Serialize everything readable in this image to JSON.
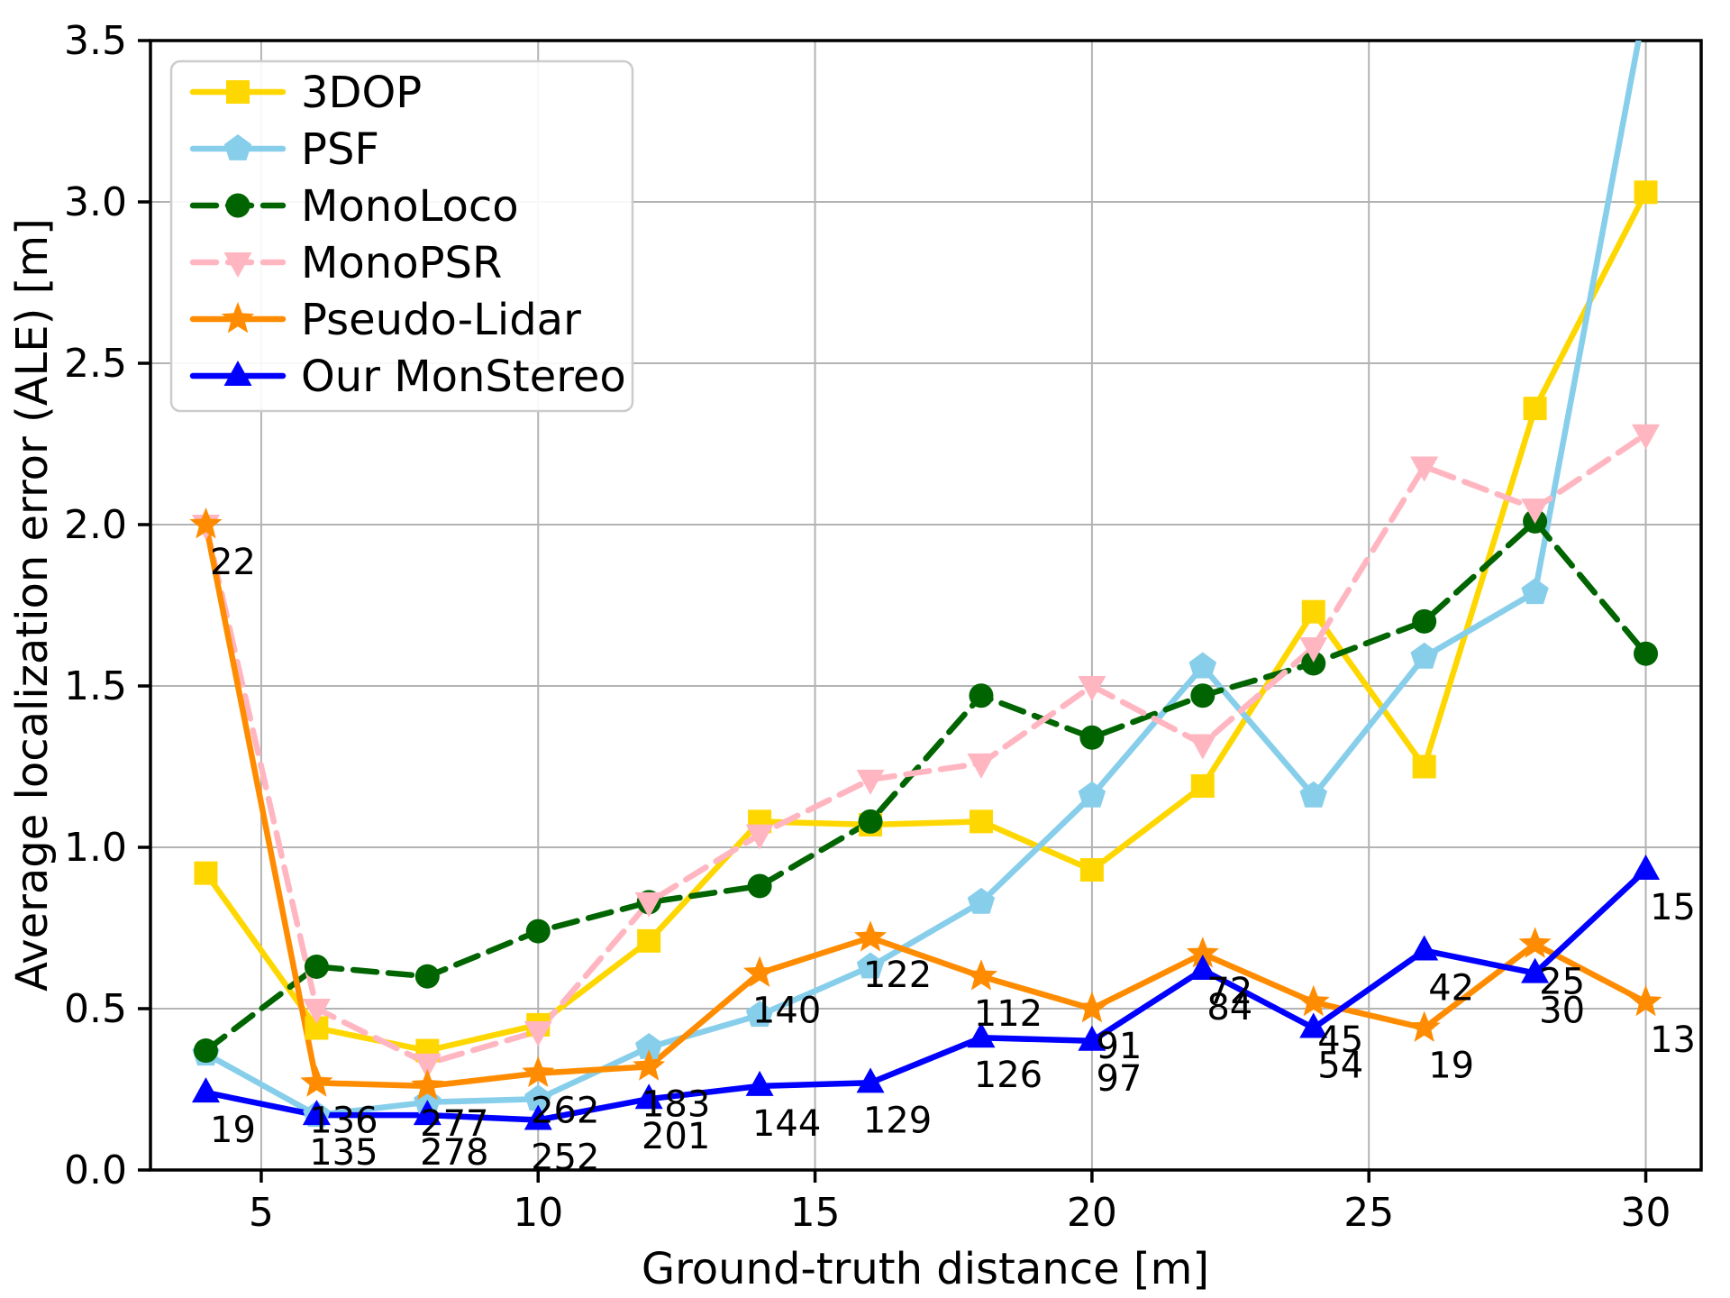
{
  "figure": {
    "background": "#ffffff"
  },
  "chart_data": {
    "type": "line",
    "title": "",
    "xlabel": "Ground-truth distance [m]",
    "ylabel": "Average localization error (ALE) [m]",
    "xlim": [
      3,
      31
    ],
    "ylim": [
      0,
      3.5
    ],
    "x_ticks": [
      5,
      10,
      15,
      20,
      25,
      30
    ],
    "x_tick_labels": [
      "5",
      "10",
      "15",
      "20",
      "25",
      "30"
    ],
    "y_ticks": [
      0,
      0.5,
      1,
      1.5,
      2,
      2.5,
      3,
      3.5
    ],
    "y_tick_labels": [
      "0.0",
      "0.5",
      "1.0",
      "1.5",
      "2.0",
      "2.5",
      "3.0",
      "3.5"
    ],
    "grid": true,
    "grid_color": "#b3b3b3",
    "legend_position": "upper-left",
    "x": [
      4,
      6,
      8,
      10,
      12,
      14,
      16,
      18,
      20,
      22,
      24,
      26,
      28,
      30
    ],
    "series": [
      {
        "name": "3DOP",
        "color": "#FFD700",
        "line_style": "solid",
        "marker": "square",
        "values": [
          0.92,
          0.44,
          0.37,
          0.45,
          0.71,
          1.08,
          1.07,
          1.08,
          0.93,
          1.19,
          1.73,
          1.25,
          2.36,
          3.03
        ]
      },
      {
        "name": "PSF",
        "color": "#87CEEB",
        "line_style": "solid",
        "marker": "pentagon",
        "values": [
          0.36,
          0.17,
          0.21,
          0.22,
          0.38,
          0.48,
          0.63,
          0.83,
          1.16,
          1.56,
          1.16,
          1.59,
          1.79,
          3.62
        ]
      },
      {
        "name": "MonoLoco",
        "color": "#006400",
        "line_style": "dashed",
        "marker": "circle",
        "values": [
          0.37,
          0.63,
          0.6,
          0.74,
          0.83,
          0.88,
          1.08,
          1.47,
          1.34,
          1.47,
          1.57,
          1.7,
          2.01,
          1.6
        ]
      },
      {
        "name": "MonoPSR",
        "color": "#FFB6C1",
        "line_style": "dashed",
        "marker": "triangle-down",
        "values": [
          2.0,
          0.5,
          0.33,
          0.43,
          0.83,
          1.04,
          1.21,
          1.26,
          1.5,
          1.32,
          1.62,
          2.18,
          2.05,
          2.28
        ]
      },
      {
        "name": "Pseudo-Lidar",
        "color": "#FF8C00",
        "line_style": "solid",
        "marker": "star",
        "values": [
          2.0,
          0.27,
          0.26,
          0.3,
          0.32,
          0.61,
          0.72,
          0.6,
          0.5,
          0.67,
          0.52,
          0.44,
          0.7,
          0.52
        ],
        "annotations": [
          "22",
          "136",
          "277",
          "262",
          "183",
          "140",
          "122",
          "112",
          "91",
          "72",
          "45",
          "19",
          "25",
          "13"
        ]
      },
      {
        "name": "Our MonStereo",
        "color": "#0000FF",
        "line_style": "solid",
        "marker": "triangle-up",
        "values": [
          0.24,
          0.17,
          0.17,
          0.155,
          0.22,
          0.26,
          0.27,
          0.41,
          0.4,
          0.62,
          0.44,
          0.68,
          0.61,
          0.93
        ],
        "annotations": [
          "19",
          "135",
          "278",
          "252",
          "201",
          "144",
          "129",
          "126",
          "97",
          "84",
          "54",
          "42",
          "30",
          "15"
        ]
      }
    ]
  }
}
